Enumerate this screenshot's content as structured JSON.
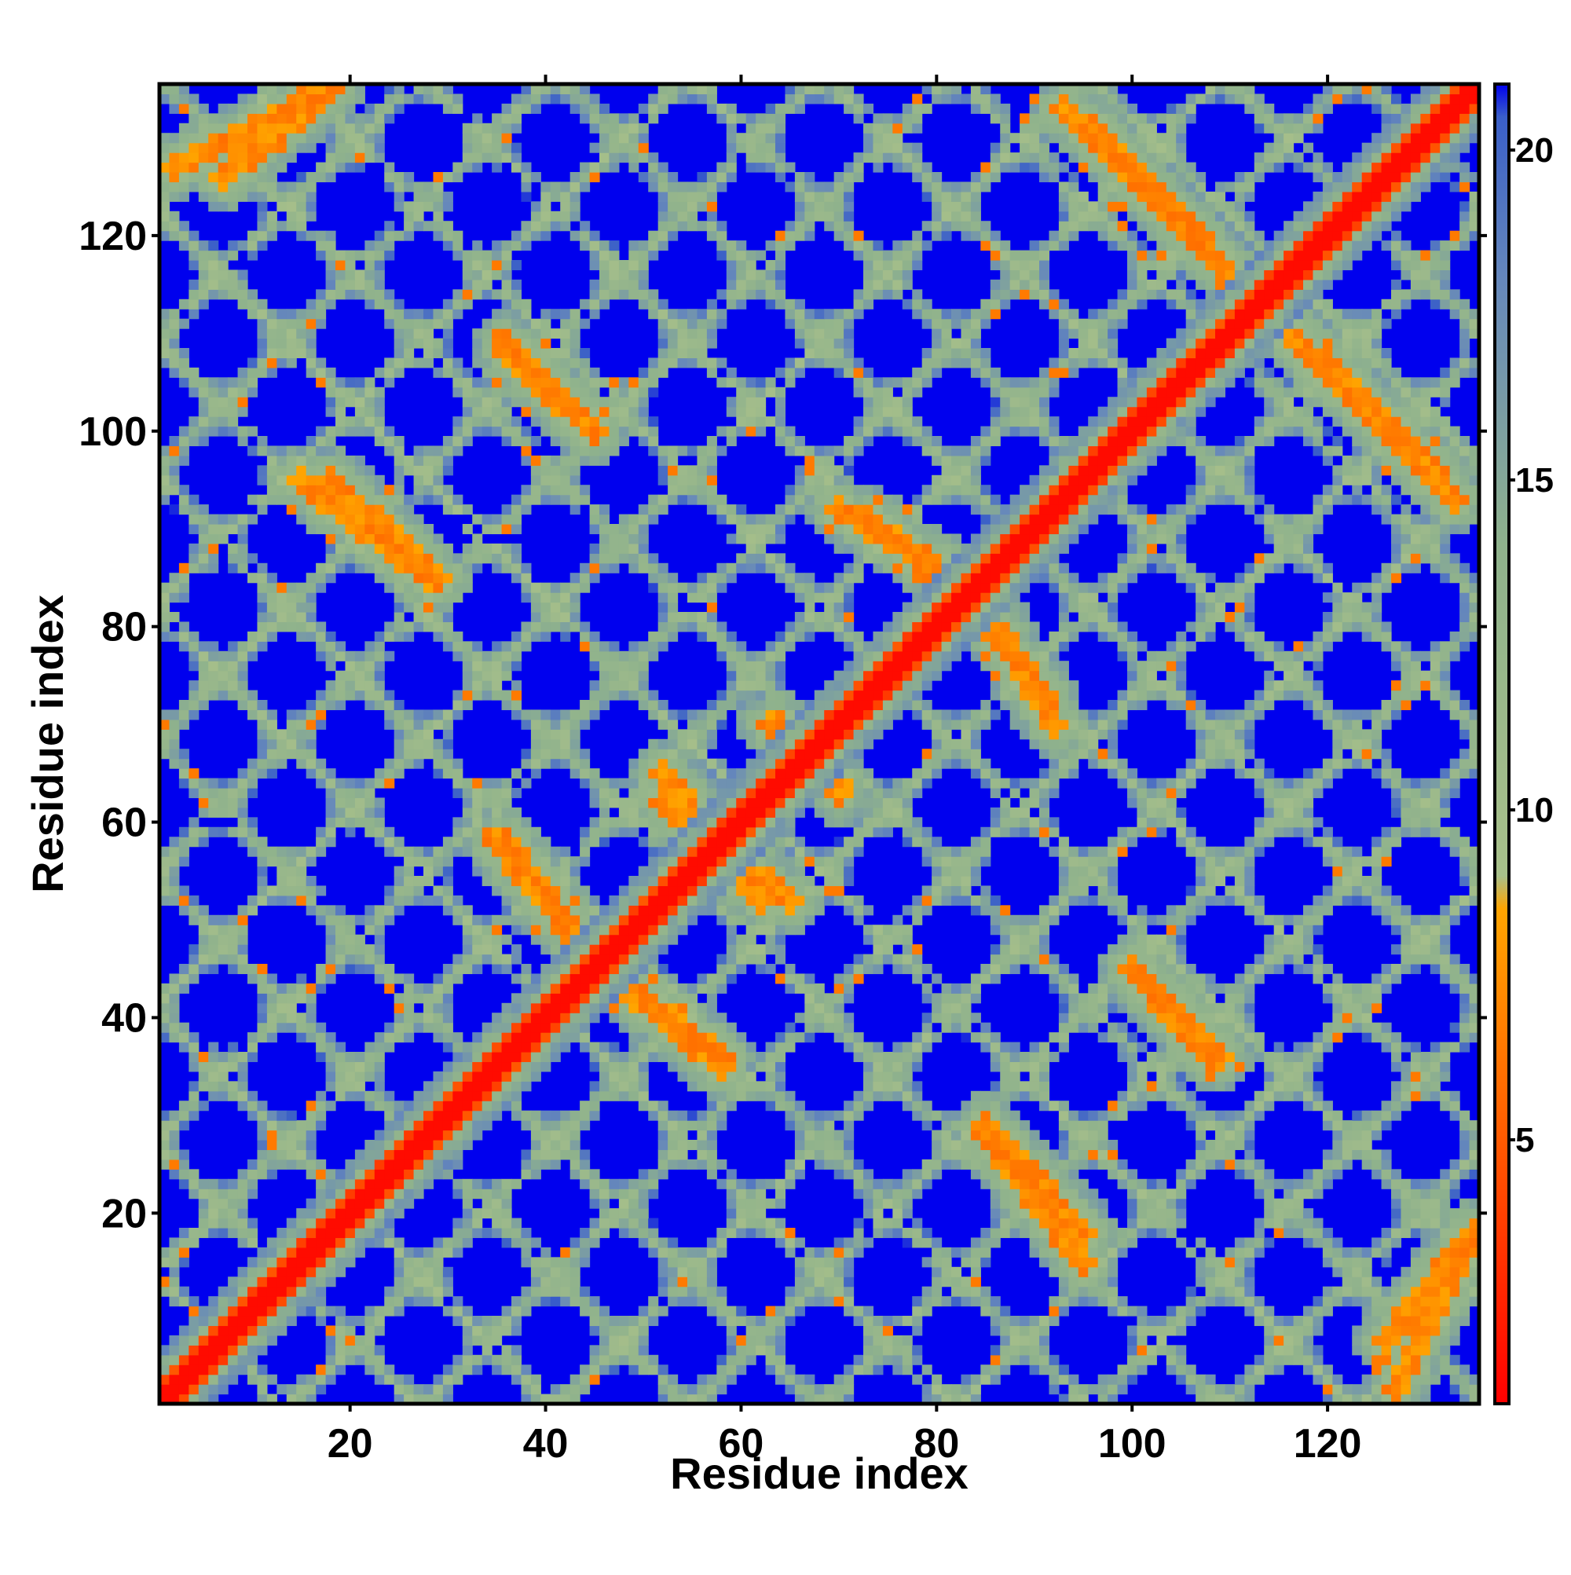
{
  "chart_data": {
    "type": "heatmap",
    "title": "",
    "xlabel": "Residue index",
    "ylabel": "Residue index",
    "n_residues": 135,
    "xlim": [
      1,
      135
    ],
    "ylim": [
      1,
      135
    ],
    "x_ticks": [
      20,
      40,
      60,
      80,
      100,
      120
    ],
    "y_ticks": [
      20,
      40,
      60,
      80,
      100,
      120
    ],
    "colorbar": {
      "range": [
        1,
        21
      ],
      "ticks": [
        5,
        10,
        15,
        20
      ],
      "position": "right",
      "stops": [
        {
          "value": 1,
          "color": "#ff0000"
        },
        {
          "value": 5,
          "color": "#ff5a00"
        },
        {
          "value": 8.5,
          "color": "#ffa500"
        },
        {
          "value": 9,
          "color": "#a8c08a"
        },
        {
          "value": 14,
          "color": "#8fb28c"
        },
        {
          "value": 18,
          "color": "#6688bb"
        },
        {
          "value": 20.5,
          "color": "#3a5fc8"
        },
        {
          "value": 21,
          "color": "#0000ee"
        }
      ]
    },
    "contact_bands": [
      {
        "from_x": 2,
        "from_y": 127,
        "to_x": 18,
        "to_y": 135,
        "strength": 0.85
      },
      {
        "from_x": 36,
        "from_y": 108,
        "to_x": 45,
        "to_y": 100,
        "strength": 0.85
      },
      {
        "from_x": 15,
        "from_y": 95,
        "to_x": 28,
        "to_y": 85,
        "strength": 0.85
      },
      {
        "from_x": 35,
        "from_y": 58,
        "to_x": 45,
        "to_y": 46,
        "strength": 0.85
      },
      {
        "from_x": 50,
        "from_y": 42,
        "to_x": 58,
        "to_y": 36,
        "strength": 0.85
      },
      {
        "from_x": 52,
        "from_y": 65,
        "to_x": 62,
        "to_y": 52,
        "strength": 0.8
      },
      {
        "from_x": 70,
        "from_y": 92,
        "to_x": 82,
        "to_y": 85,
        "strength": 0.85
      },
      {
        "from_x": 84,
        "from_y": 82,
        "to_x": 91,
        "to_y": 73,
        "strength": 0.8
      },
      {
        "from_x": 63,
        "from_y": 70,
        "to_x": 70,
        "to_y": 64,
        "strength": 0.8
      },
      {
        "from_x": 93,
        "from_y": 133,
        "to_x": 110,
        "to_y": 116,
        "strength": 0.9
      },
      {
        "from_x": 114,
        "from_y": 112,
        "to_x": 131,
        "to_y": 96,
        "strength": 0.9
      },
      {
        "from_x": 100,
        "from_y": 45,
        "to_x": 109,
        "to_y": 36,
        "strength": 0.85
      },
      {
        "from_x": 85,
        "from_y": 29,
        "to_x": 95,
        "to_y": 18,
        "strength": 0.85
      },
      {
        "from_x": 126,
        "from_y": 7,
        "to_x": 135,
        "to_y": 18,
        "strength": 0.85
      }
    ],
    "noise_seed": 7
  }
}
